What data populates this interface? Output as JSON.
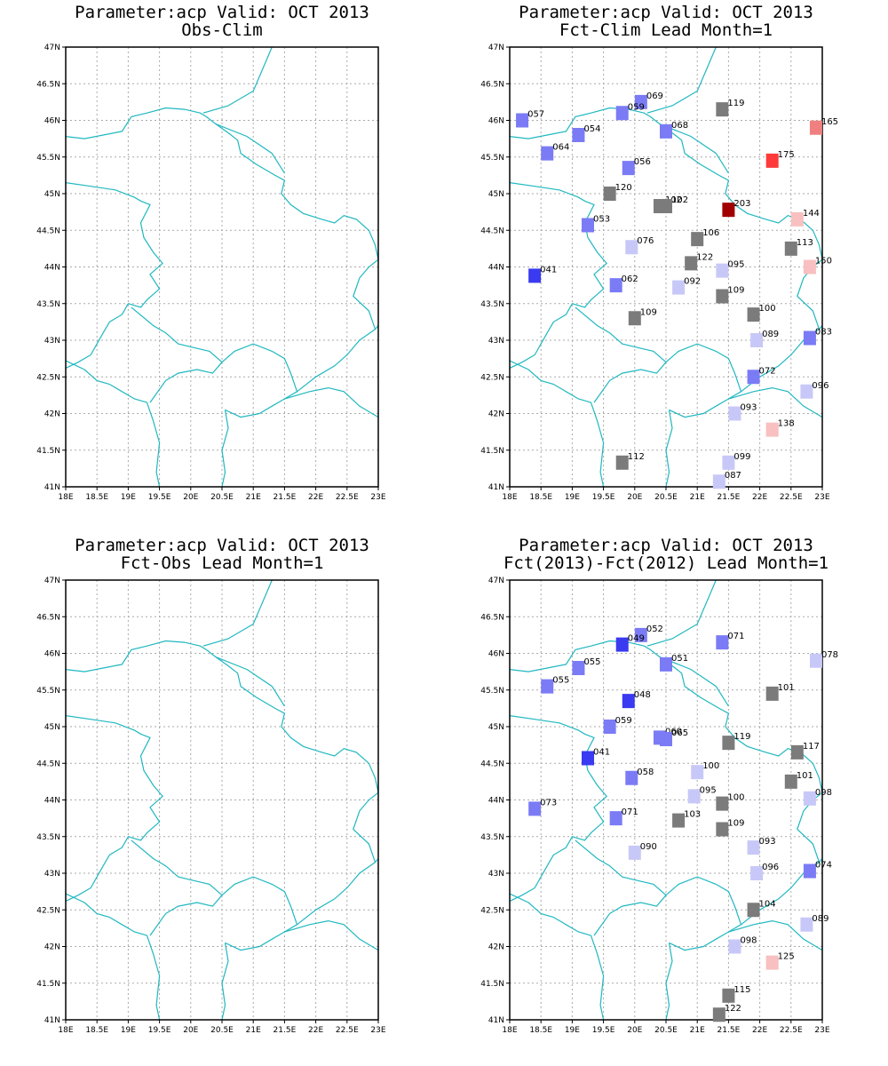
{
  "panels": [
    {
      "id": "p1",
      "title1": "Parameter:acp Valid: OCT 2013",
      "title2": "Obs-Clim",
      "stations": []
    },
    {
      "id": "p2",
      "title1": "Parameter:acp Valid: OCT 2013",
      "title2": "Fct-Clim Lead Month=1",
      "stations": [
        {
          "lon": 18.2,
          "lat": 46.0,
          "label": "057",
          "color": "#7b7bf6"
        },
        {
          "lon": 20.1,
          "lat": 46.25,
          "label": "069",
          "color": "#7b7bf6"
        },
        {
          "lon": 19.8,
          "lat": 46.1,
          "label": "059",
          "color": "#7b7bf6"
        },
        {
          "lon": 21.4,
          "lat": 46.15,
          "label": "119",
          "color": "#7b7b7b"
        },
        {
          "lon": 22.9,
          "lat": 45.9,
          "label": "165",
          "color": "#f08080"
        },
        {
          "lon": 19.1,
          "lat": 45.8,
          "label": "054",
          "color": "#7b7bf6"
        },
        {
          "lon": 20.5,
          "lat": 45.85,
          "label": "068",
          "color": "#7b7bf6"
        },
        {
          "lon": 18.6,
          "lat": 45.55,
          "label": "064",
          "color": "#7b7bf6"
        },
        {
          "lon": 19.9,
          "lat": 45.35,
          "label": "056",
          "color": "#7b7bf6"
        },
        {
          "lon": 22.2,
          "lat": 45.45,
          "label": "175",
          "color": "#ff3a3a"
        },
        {
          "lon": 19.6,
          "lat": 45.0,
          "label": "120",
          "color": "#7b7b7b"
        },
        {
          "lon": 20.4,
          "lat": 44.83,
          "label": "102",
          "color": "#7b7b7b"
        },
        {
          "lon": 20.5,
          "lat": 44.83,
          "label": "102",
          "color": "#7b7b7b"
        },
        {
          "lon": 21.5,
          "lat": 44.78,
          "label": "203",
          "color": "#a00000"
        },
        {
          "lon": 22.6,
          "lat": 44.65,
          "label": "144",
          "color": "#f8c0c0"
        },
        {
          "lon": 19.25,
          "lat": 44.57,
          "label": "053",
          "color": "#7b7bf6"
        },
        {
          "lon": 21.0,
          "lat": 44.38,
          "label": "106",
          "color": "#7b7b7b"
        },
        {
          "lon": 19.95,
          "lat": 44.27,
          "label": "076",
          "color": "#c8c8f8"
        },
        {
          "lon": 22.5,
          "lat": 44.25,
          "label": "113",
          "color": "#7b7b7b"
        },
        {
          "lon": 20.9,
          "lat": 44.05,
          "label": "122",
          "color": "#7b7b7b"
        },
        {
          "lon": 22.8,
          "lat": 44.0,
          "label": "150",
          "color": "#f8c0c0"
        },
        {
          "lon": 21.4,
          "lat": 43.95,
          "label": "095",
          "color": "#c8c8f8"
        },
        {
          "lon": 18.4,
          "lat": 43.88,
          "label": "041",
          "color": "#3a3af0"
        },
        {
          "lon": 19.7,
          "lat": 43.75,
          "label": "062",
          "color": "#7b7bf6"
        },
        {
          "lon": 20.7,
          "lat": 43.72,
          "label": "092",
          "color": "#c8c8f8"
        },
        {
          "lon": 21.4,
          "lat": 43.6,
          "label": "109",
          "color": "#7b7b7b"
        },
        {
          "lon": 21.9,
          "lat": 43.35,
          "label": "100",
          "color": "#7b7b7b"
        },
        {
          "lon": 20.0,
          "lat": 43.3,
          "label": "109",
          "color": "#7b7b7b"
        },
        {
          "lon": 22.8,
          "lat": 43.03,
          "label": "083",
          "color": "#7b7bf6"
        },
        {
          "lon": 21.95,
          "lat": 43.0,
          "label": "089",
          "color": "#c8c8f8"
        },
        {
          "lon": 21.9,
          "lat": 42.5,
          "label": "072",
          "color": "#7b7bf6"
        },
        {
          "lon": 22.75,
          "lat": 42.3,
          "label": "096",
          "color": "#c8c8f8"
        },
        {
          "lon": 21.6,
          "lat": 42.0,
          "label": "093",
          "color": "#c8c8f8"
        },
        {
          "lon": 22.2,
          "lat": 41.78,
          "label": "138",
          "color": "#f8c0c0"
        },
        {
          "lon": 19.8,
          "lat": 41.33,
          "label": "112",
          "color": "#7b7b7b"
        },
        {
          "lon": 21.5,
          "lat": 41.33,
          "label": "099",
          "color": "#c8c8f8"
        },
        {
          "lon": 21.35,
          "lat": 41.07,
          "label": "087",
          "color": "#c8c8f8"
        }
      ]
    },
    {
      "id": "p3",
      "title1": "Parameter:acp Valid: OCT 2013",
      "title2": "Fct-Obs Lead Month=1",
      "stations": []
    },
    {
      "id": "p4",
      "title1": "Parameter:acp Valid: OCT 2013",
      "title2": "Fct(2013)-Fct(2012) Lead Month=1",
      "stations": [
        {
          "lon": 20.1,
          "lat": 46.25,
          "label": "052",
          "color": "#7b7bf6"
        },
        {
          "lon": 19.8,
          "lat": 46.12,
          "label": "049",
          "color": "#3a3af0"
        },
        {
          "lon": 21.4,
          "lat": 46.15,
          "label": "071",
          "color": "#7b7bf6"
        },
        {
          "lon": 22.9,
          "lat": 45.9,
          "label": "078",
          "color": "#c8c8f8"
        },
        {
          "lon": 19.1,
          "lat": 45.8,
          "label": "055",
          "color": "#7b7bf6"
        },
        {
          "lon": 20.5,
          "lat": 45.85,
          "label": "051",
          "color": "#7b7bf6"
        },
        {
          "lon": 18.6,
          "lat": 45.55,
          "label": "055",
          "color": "#7b7bf6"
        },
        {
          "lon": 22.2,
          "lat": 45.45,
          "label": "101",
          "color": "#7b7b7b"
        },
        {
          "lon": 19.9,
          "lat": 45.35,
          "label": "048",
          "color": "#3a3af0"
        },
        {
          "lon": 19.6,
          "lat": 45.0,
          "label": "059",
          "color": "#7b7bf6"
        },
        {
          "lon": 20.4,
          "lat": 44.85,
          "label": "060",
          "color": "#7b7bf6"
        },
        {
          "lon": 20.5,
          "lat": 44.83,
          "label": "065",
          "color": "#7b7bf6"
        },
        {
          "lon": 21.5,
          "lat": 44.78,
          "label": "119",
          "color": "#7b7b7b"
        },
        {
          "lon": 22.6,
          "lat": 44.65,
          "label": "117",
          "color": "#7b7b7b"
        },
        {
          "lon": 19.25,
          "lat": 44.57,
          "label": "041",
          "color": "#3a3af0"
        },
        {
          "lon": 21.0,
          "lat": 44.38,
          "label": "100",
          "color": "#c8c8f8"
        },
        {
          "lon": 19.95,
          "lat": 44.3,
          "label": "058",
          "color": "#7b7bf6"
        },
        {
          "lon": 22.5,
          "lat": 44.25,
          "label": "101",
          "color": "#7b7b7b"
        },
        {
          "lon": 20.95,
          "lat": 44.05,
          "label": "095",
          "color": "#c8c8f8"
        },
        {
          "lon": 22.8,
          "lat": 44.02,
          "label": "098",
          "color": "#c8c8f8"
        },
        {
          "lon": 21.4,
          "lat": 43.95,
          "label": "100",
          "color": "#7b7b7b"
        },
        {
          "lon": 18.4,
          "lat": 43.88,
          "label": "073",
          "color": "#7b7bf6"
        },
        {
          "lon": 19.7,
          "lat": 43.75,
          "label": "071",
          "color": "#7b7bf6"
        },
        {
          "lon": 20.7,
          "lat": 43.72,
          "label": "103",
          "color": "#7b7b7b"
        },
        {
          "lon": 21.4,
          "lat": 43.6,
          "label": "109",
          "color": "#7b7b7b"
        },
        {
          "lon": 21.9,
          "lat": 43.35,
          "label": "093",
          "color": "#c8c8f8"
        },
        {
          "lon": 20.0,
          "lat": 43.28,
          "label": "090",
          "color": "#c8c8f8"
        },
        {
          "lon": 22.8,
          "lat": 43.03,
          "label": "074",
          "color": "#7b7bf6"
        },
        {
          "lon": 21.95,
          "lat": 43.0,
          "label": "096",
          "color": "#c8c8f8"
        },
        {
          "lon": 21.9,
          "lat": 42.5,
          "label": "104",
          "color": "#7b7b7b"
        },
        {
          "lon": 22.75,
          "lat": 42.3,
          "label": "089",
          "color": "#c8c8f8"
        },
        {
          "lon": 21.6,
          "lat": 42.0,
          "label": "098",
          "color": "#c8c8f8"
        },
        {
          "lon": 22.2,
          "lat": 41.78,
          "label": "125",
          "color": "#f8c0c0"
        },
        {
          "lon": 21.5,
          "lat": 41.33,
          "label": "115",
          "color": "#7b7b7b"
        },
        {
          "lon": 21.35,
          "lat": 41.07,
          "label": "122",
          "color": "#7b7b7b"
        }
      ]
    }
  ],
  "x_ticks": [
    "18E",
    "18.5E",
    "19E",
    "19.5E",
    "20E",
    "20.5E",
    "21E",
    "21.5E",
    "22E",
    "22.5E",
    "23E"
  ],
  "y_ticks": [
    "41N",
    "41.5N",
    "42N",
    "42.5N",
    "43N",
    "43.5N",
    "44N",
    "44.5N",
    "45N",
    "45.5N",
    "46N",
    "46.5N",
    "47N"
  ],
  "colors": {
    "border": "#20b8c0",
    "grid": "#aaaaaa"
  }
}
